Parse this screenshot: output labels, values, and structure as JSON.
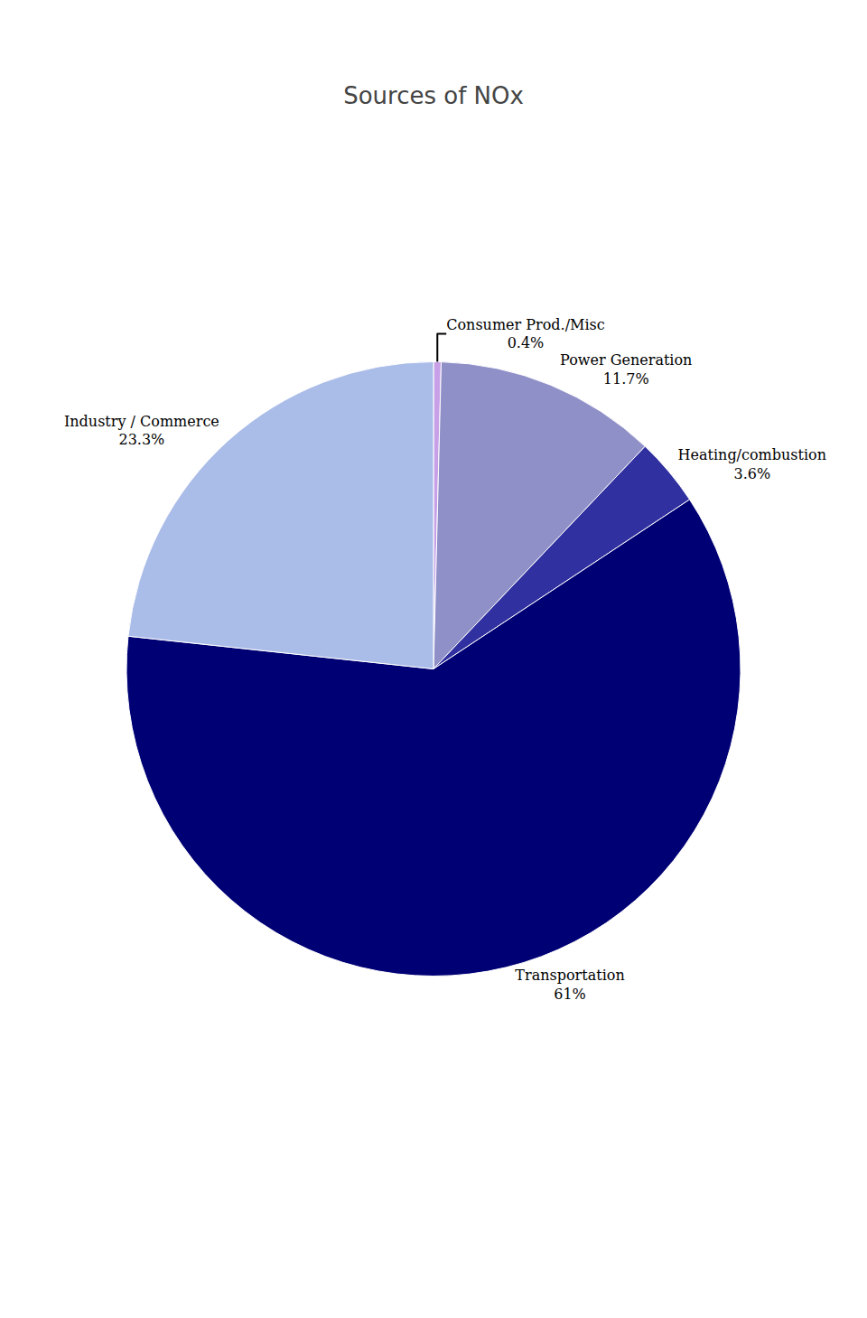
{
  "chart_data": {
    "type": "pie",
    "title": "Sources of NOx",
    "categories": [
      "Consumer Prod./Misc",
      "Power Generation",
      "Heating/combustion",
      "Transportation",
      "Industry / Commerce"
    ],
    "values": [
      0.4,
      11.7,
      3.6,
      61.0,
      23.3
    ],
    "value_labels": [
      "0.4%",
      "11.7%",
      "3.6%",
      "61%",
      "23.3%"
    ],
    "colors": [
      "#C8A0E8",
      "#9090C8",
      "#3030A0",
      "#000075",
      "#AABCE8"
    ],
    "data_labels": true
  }
}
